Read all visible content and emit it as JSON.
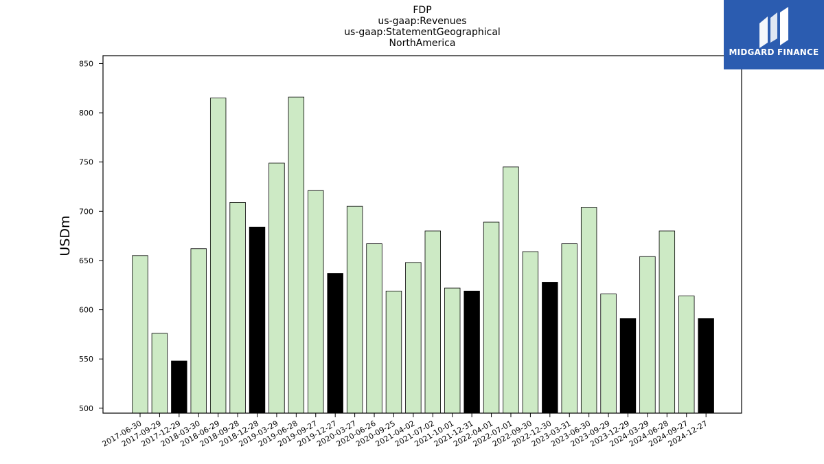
{
  "chart_data": {
    "type": "bar",
    "title_lines": [
      "FDP",
      "us-gaap:Revenues",
      "us-gaap:StatementGeographical",
      "NorthAmerica"
    ],
    "ylabel": "USDm",
    "xlabel": "",
    "ylim": [
      495,
      858
    ],
    "yticks": [
      500,
      550,
      600,
      650,
      700,
      750,
      800,
      850
    ],
    "categories": [
      "2017-06-30",
      "2017-09-29",
      "2017-12-29",
      "2018-03-30",
      "2018-06-29",
      "2018-09-28",
      "2018-12-28",
      "2019-03-29",
      "2019-06-28",
      "2019-09-27",
      "2019-12-27",
      "2020-03-27",
      "2020-06-26",
      "2020-09-25",
      "2021-04-02",
      "2021-07-02",
      "2021-10-01",
      "2021-12-31",
      "2022-04-01",
      "2022-07-01",
      "2022-09-30",
      "2022-12-30",
      "2023-03-31",
      "2023-06-30",
      "2023-09-29",
      "2023-12-29",
      "2024-03-29",
      "2024-06-28",
      "2024-09-27",
      "2024-12-27"
    ],
    "values": [
      655,
      576,
      548,
      662,
      815,
      709,
      684,
      749,
      816,
      721,
      637,
      705,
      667,
      619,
      648,
      680,
      622,
      619,
      689,
      745,
      659,
      628,
      667,
      704,
      616,
      591,
      654,
      680,
      614,
      591
    ],
    "highlighted": [
      false,
      false,
      true,
      false,
      false,
      false,
      true,
      false,
      false,
      false,
      true,
      false,
      false,
      false,
      false,
      false,
      false,
      true,
      false,
      false,
      false,
      true,
      false,
      false,
      false,
      true,
      false,
      false,
      false,
      true
    ],
    "colors": {
      "normal": "#CDEAC5",
      "highlight": "#000000",
      "edge": "#000000"
    },
    "grid": false
  },
  "logo": {
    "text": "MIDGARD FINANCE",
    "background": "#2B5CB0"
  }
}
